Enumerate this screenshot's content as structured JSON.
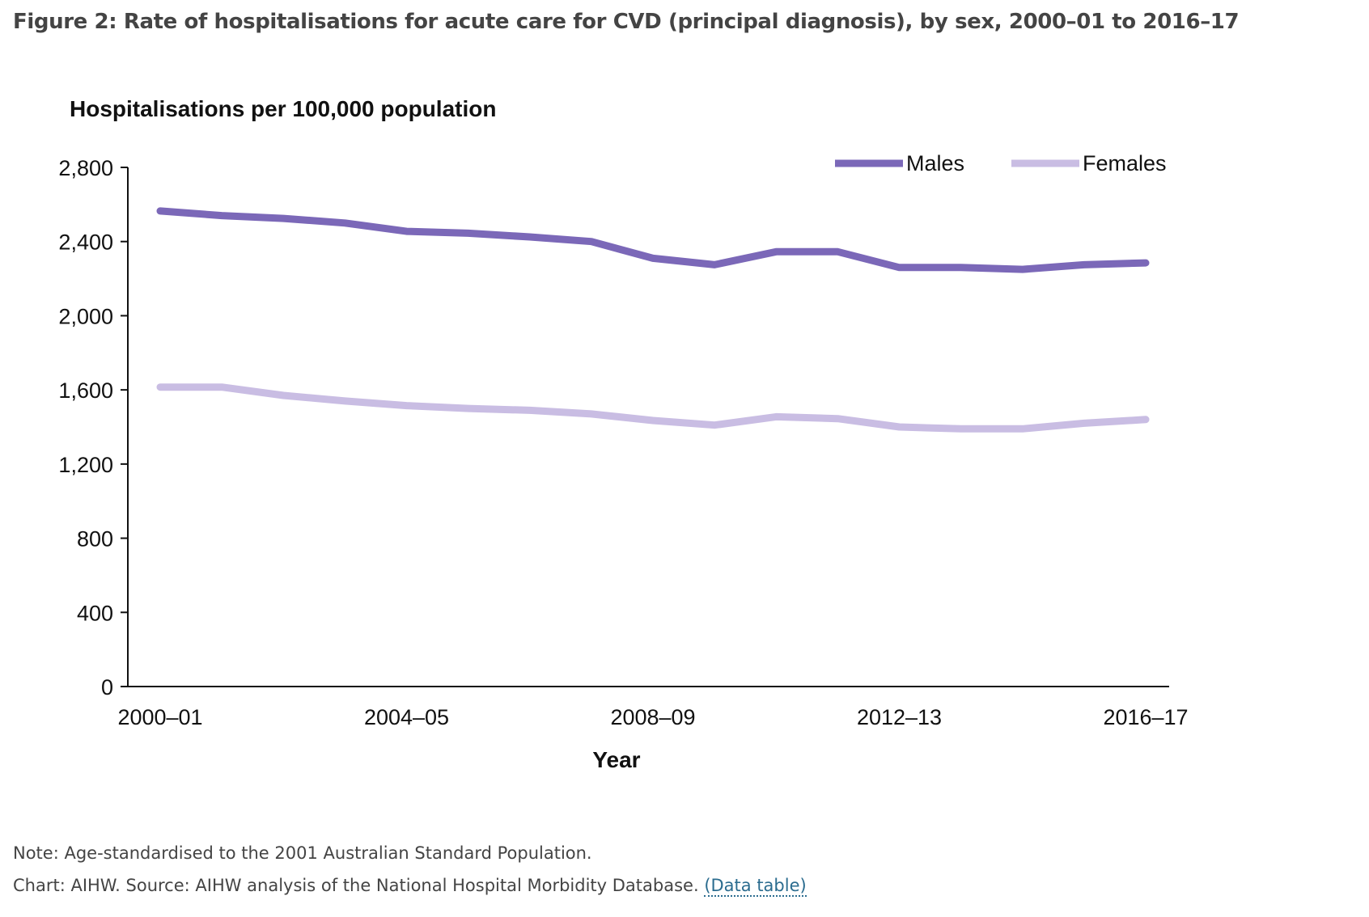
{
  "figure": {
    "title": "Figure 2: Rate of hospitalisations for acute care for CVD (principal diagnosis), by sex, 2000–01 to 2016–17",
    "note": "Note: Age-standardised to the 2001 Australian Standard Population.",
    "source": "Chart: AIHW. Source: AIHW analysis of the National Hospital Morbidity Database.",
    "data_table_link": "(Data table)"
  },
  "colors": {
    "males": "#7b68b8",
    "females": "#c9bde3",
    "axis": "#111111"
  },
  "chart_data": {
    "type": "line",
    "title": "",
    "ylabel": "Hospitalisations per 100,000 population",
    "xlabel": "Year",
    "ylim": [
      0,
      2800
    ],
    "yticks": [
      0,
      400,
      800,
      1200,
      1600,
      2000,
      2400,
      2800
    ],
    "ytick_labels": [
      "0",
      "400",
      "800",
      "1,200",
      "1,600",
      "2,000",
      "2,400",
      "2,800"
    ],
    "x": [
      "2000–01",
      "2001–02",
      "2002–03",
      "2003–04",
      "2004–05",
      "2005–06",
      "2006–07",
      "2007–08",
      "2008–09",
      "2009–10",
      "2010–11",
      "2011–12",
      "2012–13",
      "2013–14",
      "2014–15",
      "2015–16",
      "2016–17"
    ],
    "xtick_labels": [
      "2000–01",
      "2004–05",
      "2008–09",
      "2012–13",
      "2016–17"
    ],
    "legend": "top-right",
    "grid": false,
    "series": [
      {
        "name": "Males",
        "values": [
          2565,
          2540,
          2525,
          2500,
          2455,
          2445,
          2425,
          2400,
          2310,
          2275,
          2345,
          2345,
          2260,
          2260,
          2250,
          2275,
          2285
        ]
      },
      {
        "name": "Females",
        "values": [
          1615,
          1615,
          1570,
          1540,
          1515,
          1500,
          1490,
          1470,
          1435,
          1410,
          1455,
          1445,
          1400,
          1390,
          1390,
          1420,
          1440
        ]
      }
    ]
  }
}
